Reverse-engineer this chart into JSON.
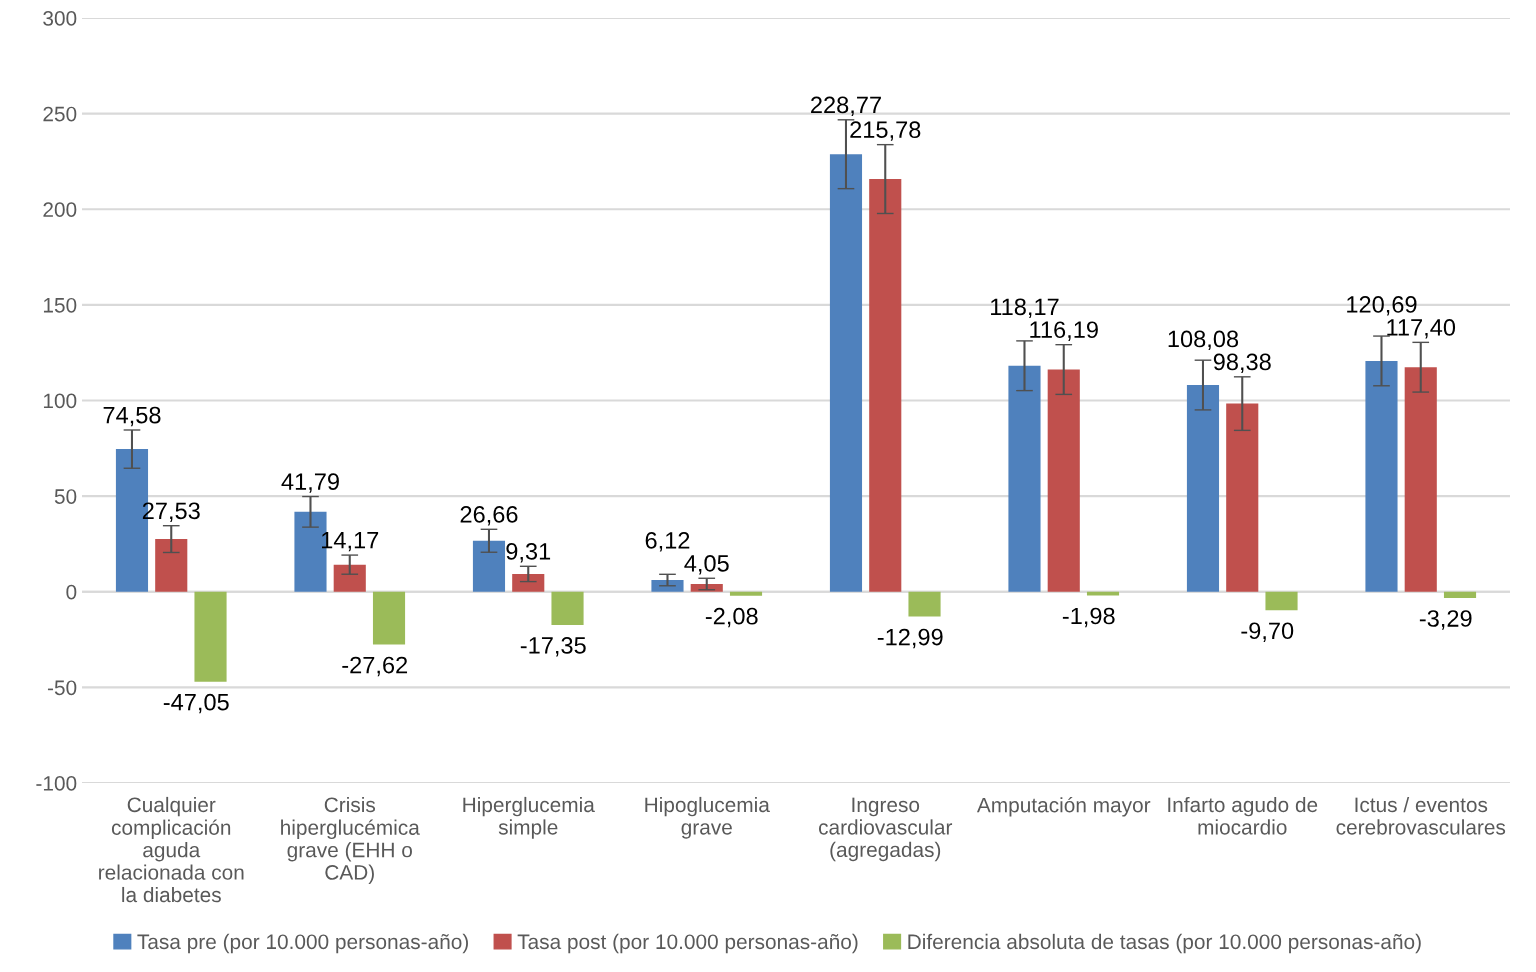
{
  "chart_data": {
    "type": "bar",
    "categories": [
      "Cualquier complicación aguda relacionada con la diabetes",
      "Crisis hiperglucémica grave (EHH o CAD)",
      "Hiperglucemia simple",
      "Hipoglucemia grave",
      "Ingreso cardiovascular (agregadas)",
      "Amputación mayor",
      "Infarto agudo de miocardio",
      "Ictus / eventos cerebrovasculares"
    ],
    "series": [
      {
        "name": "Tasa pre (por 10.000 personas-año)",
        "color": "#4f81bd",
        "values": [
          74.58,
          41.79,
          26.66,
          6.12,
          228.77,
          118.17,
          108.08,
          120.69
        ],
        "errors": [
          10,
          8,
          6,
          3,
          18,
          13,
          13,
          13
        ],
        "value_labels": [
          "74,58",
          "41,79",
          "26,66",
          "6,12",
          "228,77",
          "118,17",
          "108,08",
          "120,69"
        ]
      },
      {
        "name": "Tasa post (por 10.000 personas-año)",
        "color": "#c0504d",
        "values": [
          27.53,
          14.17,
          9.31,
          4.05,
          215.78,
          116.19,
          98.38,
          117.4
        ],
        "errors": [
          7,
          5,
          4,
          3,
          18,
          13,
          14,
          13
        ],
        "value_labels": [
          "27,53",
          "14,17",
          "9,31",
          "4,05",
          "215,78",
          "116,19",
          "98,38",
          "117,40"
        ]
      },
      {
        "name": "Diferencia absoluta de tasas (por 10.000 personas-año)",
        "color": "#9bbb59",
        "values": [
          -47.05,
          -27.62,
          -17.35,
          -2.08,
          -12.99,
          -1.98,
          -9.7,
          -3.29
        ],
        "value_labels": [
          "-47,05",
          "-27,62",
          "-17,35",
          "-2,08",
          "-12,99",
          "-1,98",
          "-9,70",
          "-3,29"
        ]
      }
    ],
    "ylim": [
      -100,
      300
    ],
    "yticks": [
      -100,
      -50,
      0,
      50,
      100,
      150,
      200,
      250,
      300
    ],
    "grid": "y",
    "legend": "bottom"
  }
}
